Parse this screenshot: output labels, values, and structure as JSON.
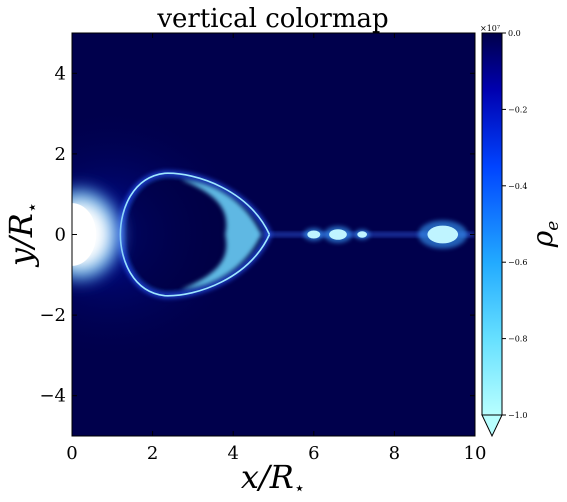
{
  "chart_data": {
    "type": "heatmap",
    "title": "vertical colormap",
    "xlabel_base": "x/R",
    "xlabel_sub": "⋆",
    "ylabel_base": "y/R",
    "ylabel_sub": "⋆",
    "xlim": [
      0,
      10
    ],
    "ylim": [
      -5,
      5
    ],
    "xticks": [
      0,
      2,
      4,
      6,
      8,
      10
    ],
    "yticks": [
      -4,
      -2,
      0,
      2,
      4
    ],
    "colorbar": {
      "label_base": "ρ",
      "label_sub": "e",
      "exponent": "×10⁷",
      "ticks": [
        "0.0",
        "−0.2",
        "−0.4",
        "−0.6",
        "−0.8",
        "−1.0"
      ],
      "tick_values": [
        0.0,
        -0.2,
        -0.4,
        -0.6,
        -0.8,
        -1.0
      ],
      "range": [
        -1.0,
        0.0
      ],
      "extend": "min",
      "colors": [
        "#00004a",
        "#0000b0",
        "#0044ff",
        "#22aaff",
        "#66e0ff",
        "#b8ffff"
      ]
    },
    "features": [
      {
        "name": "stellar core",
        "x": 0.2,
        "y": 0.0
      },
      {
        "name": "bow-shaped shell",
        "x_range": [
          1.2,
          4.9
        ],
        "y_range": [
          -1.55,
          1.55
        ]
      },
      {
        "name": "blob",
        "x": 6.0,
        "y": 0.0
      },
      {
        "name": "blob",
        "x": 6.6,
        "y": 0.0
      },
      {
        "name": "blob",
        "x": 7.2,
        "y": 0.0
      },
      {
        "name": "blob",
        "x": 9.2,
        "y": 0.0
      }
    ]
  }
}
